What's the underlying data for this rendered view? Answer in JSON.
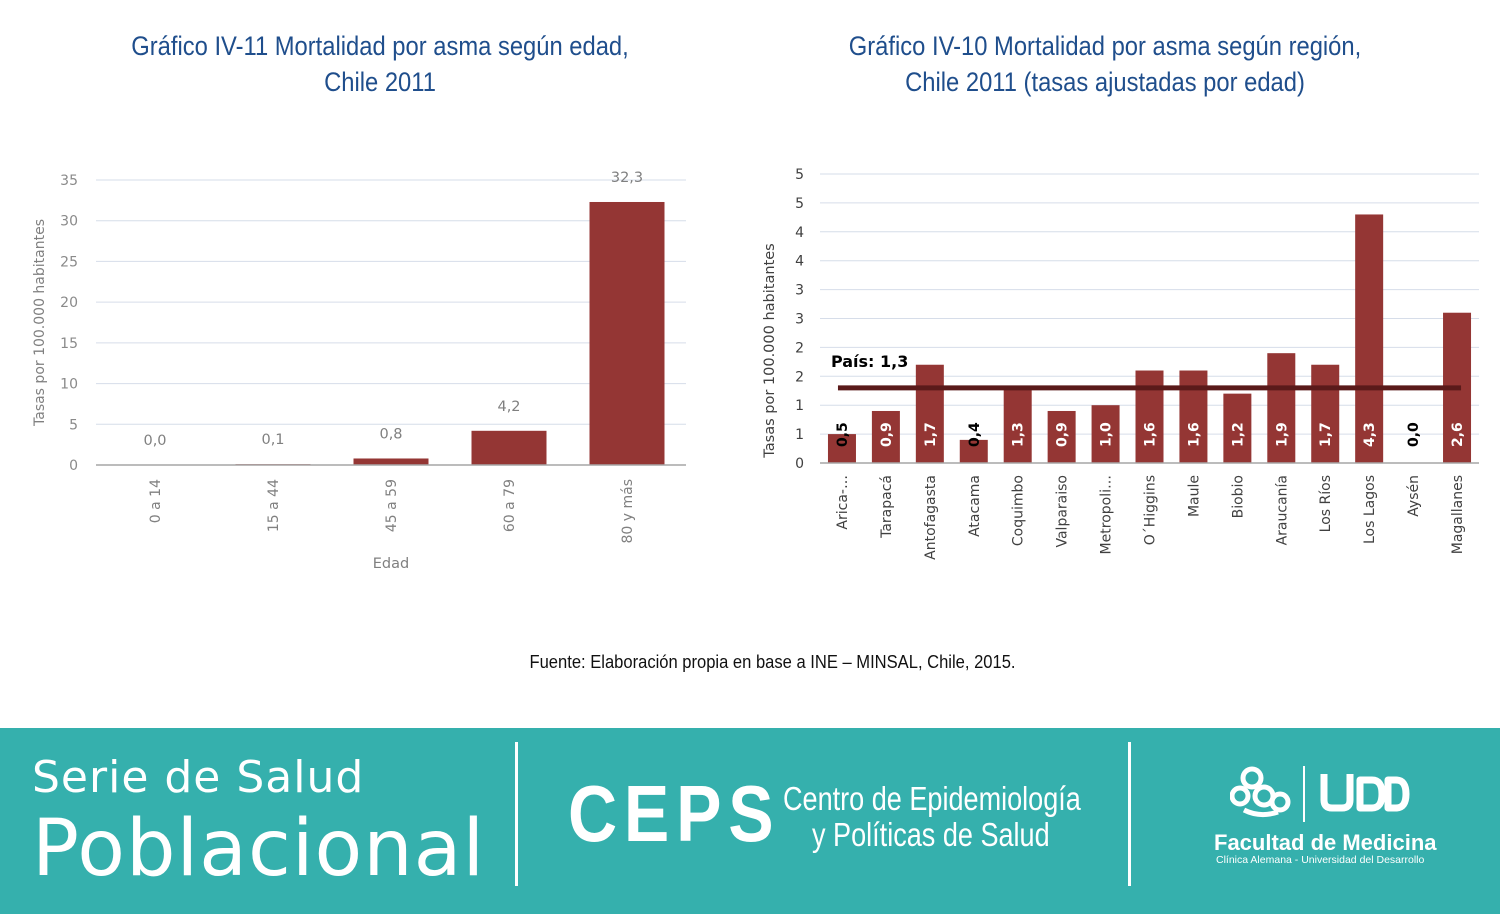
{
  "chart_data": [
    {
      "type": "bar",
      "title": "Gráfico IV-11 Mortalidad por asma según edad,\nChile 2011",
      "xlabel": "Edad",
      "ylabel": "Tasas por 100.000 habitantes",
      "categories": [
        "0 a 14",
        "15 a 44",
        "45 a 59",
        "60 a 79",
        "80 y más"
      ],
      "values": [
        0.0,
        0.1,
        0.8,
        4.2,
        32.3
      ],
      "value_labels": [
        "0,0",
        "0,1",
        "0,8",
        "4,2",
        "32,3"
      ],
      "ylim": [
        0,
        35
      ],
      "ytick_values": [
        0,
        5,
        10,
        15,
        20,
        25,
        30,
        35
      ],
      "ytick_labels": [
        "0",
        "5",
        "10",
        "15",
        "20",
        "25",
        "30",
        "35"
      ],
      "grid": true,
      "bar_color": "#943634"
    },
    {
      "type": "bar",
      "title": "Gráfico IV-10 Mortalidad por asma según región,\nChile 2011 (tasas ajustadas por edad)",
      "ylabel": "Tasas por 100.000 habitantes",
      "categories": [
        "Arica-…",
        "Tarapacá",
        "Antofagasta",
        "Atacama",
        "Coquimbo",
        "Valparaiso",
        "Metropoli…",
        "O´Higgins",
        "Maule",
        "Biobio",
        "Araucanía",
        "Los Ríos",
        "Los Lagos",
        "Aysén",
        "Magallanes"
      ],
      "values": [
        0.5,
        0.9,
        1.7,
        0.4,
        1.3,
        0.9,
        1.0,
        1.6,
        1.6,
        1.2,
        1.9,
        1.7,
        4.3,
        0.0,
        2.6
      ],
      "value_labels": [
        "0,5",
        "0,9",
        "1,7",
        "0,4",
        "1,3",
        "0,9",
        "1,0",
        "1,6",
        "1,6",
        "1,2",
        "1,9",
        "1,7",
        "4,3",
        "0,0",
        "2,6"
      ],
      "ylim": [
        0,
        5
      ],
      "ytick_values": [
        0,
        0.5,
        1,
        1.5,
        2,
        2.5,
        3,
        3.5,
        4,
        4.5,
        5
      ],
      "ytick_labels": [
        "0",
        "1",
        "1",
        "2",
        "2",
        "3",
        "3",
        "4",
        "4",
        "5",
        "5"
      ],
      "grid": true,
      "bar_color": "#943634",
      "reference_line": {
        "value": 1.3,
        "label": "País: 1,3",
        "color": "#5a1a1a"
      }
    }
  ],
  "source": "Fuente: Elaboración propia en base a INE – MINSAL, Chile, 2015.",
  "footer": {
    "serie_line1": "Serie de Salud",
    "serie_line2": "Poblacional",
    "ceps_acronym": "CEPS",
    "ceps_line1": "Centro de Epidemiología",
    "ceps_line2": "y Políticas de Salud",
    "udd_logo_text": "UDD",
    "faculty_name": "Facultad de Medicina",
    "faculty_sub": "Clínica Alemana - Universidad del Desarrollo",
    "background_color": "#35b0ad",
    "logo_icon": "clinica-alemana-logo-icon"
  }
}
